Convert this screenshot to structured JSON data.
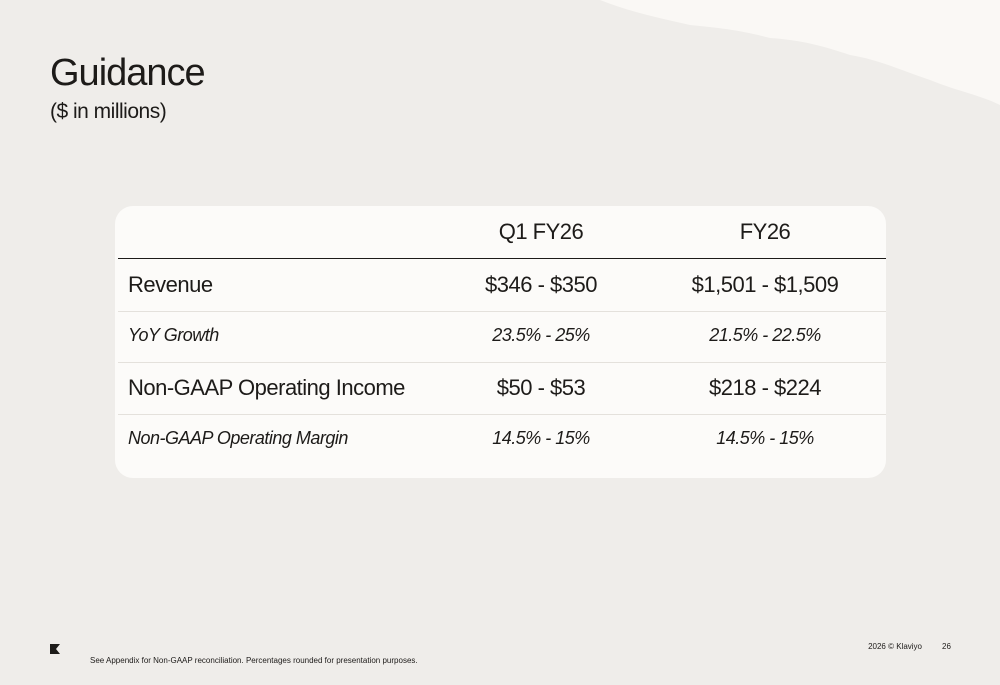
{
  "header": {
    "title": "Guidance",
    "subtitle": "($ in millions)"
  },
  "table": {
    "columns": [
      "Q1 FY26",
      "FY26"
    ],
    "rows": [
      [
        "Revenue",
        "$346 - $350",
        "$1,501 - $1,509"
      ],
      [
        "YoY Growth",
        "23.5% - 25%",
        "21.5% - 22.5%"
      ],
      [
        "Non-GAAP Operating Income",
        "$50 - $53",
        "$218 - $224"
      ],
      [
        "Non-GAAP Operating Margin",
        "14.5% - 15%",
        "14.5% - 15%"
      ]
    ]
  },
  "footer": {
    "note": "See Appendix for Non-GAAP reconciliation. Percentages rounded for presentation purposes.",
    "copyright": "2026 © Klaviyo",
    "page": "26"
  }
}
